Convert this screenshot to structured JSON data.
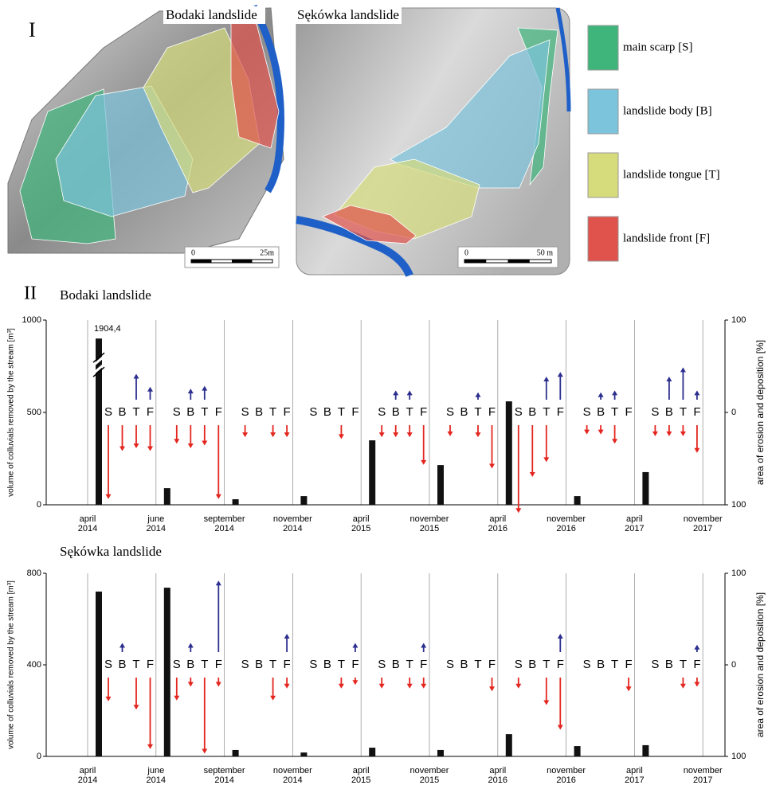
{
  "panel_I": {
    "label": "I",
    "maps": [
      {
        "title": "Bodaki landslide",
        "scale": [
          "0",
          "25m"
        ]
      },
      {
        "title": "Sękówka landslide",
        "scale": [
          "0",
          "50 m"
        ]
      }
    ],
    "legend": [
      {
        "label": "main scarp [S]",
        "color": "#3fb57c"
      },
      {
        "label": "landslide body [B]",
        "color": "#7cc3dc"
      },
      {
        "label": "landslide tongue [T]",
        "color": "#d6dc7c"
      },
      {
        "label": "landslide front [F]",
        "color": "#e0524c"
      }
    ]
  },
  "panel_II_label": "II",
  "chart_data": [
    {
      "type": "bar",
      "title": "Bodaki landslide",
      "y_label": "volume of colluvials removed by the stream [m³]",
      "y2_label": "area of erosion and deposition [%]",
      "xtick_labels": [
        "april 2014",
        "june 2014",
        "september 2014",
        "november 2014",
        "april 2015",
        "november 2015",
        "april 2016",
        "november 2016",
        "april 2017",
        "november 2017"
      ],
      "values": [
        1904.4,
        90,
        30,
        47,
        349,
        215,
        560,
        47,
        177
      ],
      "value_labels": [
        "1904,4",
        null,
        null,
        null,
        null,
        null,
        null,
        null,
        null
      ],
      "color": "#111111",
      "ylim": [
        0,
        1000
      ],
      "yticks": [
        0,
        500,
        1000
      ],
      "y2lim": [
        -100,
        100
      ],
      "y2ticks": [
        {
          "value": -100,
          "label": "100"
        },
        0,
        {
          "value": 100,
          "label": "100"
        }
      ],
      "grid": true,
      "arrow_labels": [
        "S",
        "B",
        "T",
        "F"
      ],
      "deposition": {
        "color": "#2c2f8e",
        "values": [
          [
            null,
            null,
            28,
            14
          ],
          [
            null,
            12,
            15,
            null
          ],
          [
            null,
            null,
            null,
            null
          ],
          [
            null,
            null,
            null,
            null
          ],
          [
            null,
            10,
            10,
            null
          ],
          [
            null,
            null,
            8,
            null
          ],
          [
            null,
            null,
            25,
            30
          ],
          [
            null,
            8,
            10,
            null
          ],
          [
            null,
            25,
            35,
            10
          ]
        ]
      },
      "erosion": {
        "color": "#e3261f",
        "values": [
          [
            -80,
            -28,
            -25,
            -28
          ],
          [
            -20,
            -25,
            -22,
            -80
          ],
          [
            -13,
            null,
            -13,
            -13
          ],
          [
            null,
            null,
            -15,
            null
          ],
          [
            -13,
            -13,
            -13,
            -43
          ],
          [
            -12,
            null,
            -13,
            -47
          ],
          [
            -95,
            -56,
            -40,
            null
          ],
          [
            -10,
            -10,
            -20,
            null
          ],
          [
            -12,
            -12,
            -12,
            -30
          ]
        ]
      }
    },
    {
      "type": "bar",
      "title": "Sękówka landslide",
      "y_label": "volume of colluvials removed by the stream [m³]",
      "y2_label": "area of erosion and deposition [%]",
      "xtick_labels": [
        "april 2014",
        "june 2014",
        "september 2014",
        "november 2014",
        "april 2015",
        "november 2015",
        "april 2016",
        "november 2016",
        "april 2017",
        "november 2017"
      ],
      "values": [
        720,
        737,
        28,
        17,
        38,
        28,
        97,
        45,
        49
      ],
      "color": "#111111",
      "ylim": [
        0,
        800
      ],
      "yticks": [
        0,
        400,
        800
      ],
      "y2lim": [
        -100,
        100
      ],
      "y2ticks": [
        {
          "value": -100,
          "label": "100"
        },
        0,
        {
          "value": 100,
          "label": "100"
        }
      ],
      "grid": true,
      "arrow_labels": [
        "S",
        "B",
        "T",
        "F"
      ],
      "deposition": {
        "color": "#2c2f8e",
        "values": [
          [
            null,
            10,
            null,
            null
          ],
          [
            null,
            10,
            null,
            78
          ],
          [
            null,
            null,
            null,
            20
          ],
          [
            null,
            null,
            null,
            10
          ],
          [
            null,
            null,
            null,
            10
          ],
          [
            null,
            null,
            null,
            null
          ],
          [
            null,
            null,
            null,
            20
          ],
          [
            null,
            null,
            null,
            null
          ],
          [
            null,
            null,
            null,
            8
          ]
        ]
      },
      "erosion": {
        "color": "#e3261f",
        "values": [
          [
            -26,
            null,
            -35,
            -78
          ],
          [
            -25,
            -10,
            -83,
            -10
          ],
          [
            null,
            null,
            -25,
            -12
          ],
          [
            null,
            null,
            -12,
            -8
          ],
          [
            -12,
            null,
            -12,
            -12
          ],
          [
            null,
            null,
            null,
            -15
          ],
          [
            -12,
            null,
            -30,
            -57
          ],
          [
            null,
            null,
            null,
            -15
          ],
          [
            null,
            null,
            -12,
            -10
          ]
        ]
      }
    }
  ]
}
